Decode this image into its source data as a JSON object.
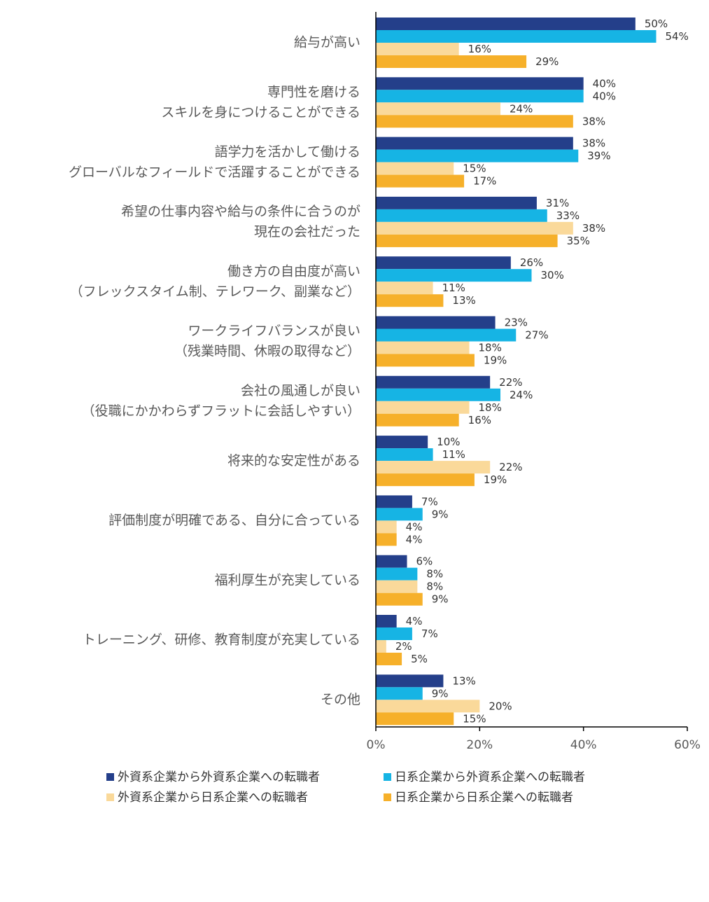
{
  "chart_data": {
    "type": "bar",
    "orientation": "horizontal",
    "categories": [
      [
        "給与が高い"
      ],
      [
        "専門性を磨ける",
        "スキルを身につけることができる"
      ],
      [
        "語学力を活かして働ける",
        "グローバルなフィールドで活躍することができる"
      ],
      [
        "希望の仕事内容や給与の条件に合うのが",
        "現在の会社だった"
      ],
      [
        "働き方の自由度が高い",
        "（フレックスタイム制、テレワーク、副業など）"
      ],
      [
        "ワークライフバランスが良い",
        "（残業時間、休暇の取得など）"
      ],
      [
        "会社の風通しが良い",
        "（役職にかかわらずフラットに会話しやすい）"
      ],
      [
        "将来的な安定性がある"
      ],
      [
        "評価制度が明確である、自分に合っている"
      ],
      [
        "福利厚生が充実している"
      ],
      [
        "トレーニング、研修、教育制度が充実している"
      ],
      [
        "その他"
      ]
    ],
    "series": [
      {
        "name": "外資系企業から外資系企業への転職者",
        "color": "#243f8a",
        "values": [
          50,
          40,
          38,
          31,
          26,
          23,
          22,
          10,
          7,
          6,
          4,
          13
        ]
      },
      {
        "name": "日系企業から外資系企業への転職者",
        "color": "#16b4e4",
        "values": [
          54,
          40,
          39,
          33,
          30,
          27,
          24,
          11,
          9,
          8,
          7,
          9
        ]
      },
      {
        "name": "外資系企業から日系企業への転職者",
        "color": "#fad99a",
        "values": [
          16,
          24,
          15,
          38,
          11,
          18,
          18,
          22,
          4,
          8,
          2,
          20
        ]
      },
      {
        "name": "日系企業から日系企業への転職者",
        "color": "#f6b02a",
        "values": [
          29,
          38,
          17,
          35,
          13,
          19,
          16,
          19,
          4,
          9,
          5,
          15
        ]
      }
    ],
    "value_suffix": "%",
    "xlim": [
      0,
      60
    ],
    "xticks": [
      0,
      20,
      40,
      60
    ],
    "xtick_labels": [
      "0%",
      "20%",
      "40%",
      "60%"
    ],
    "grid": false,
    "legend_position": "bottom"
  }
}
